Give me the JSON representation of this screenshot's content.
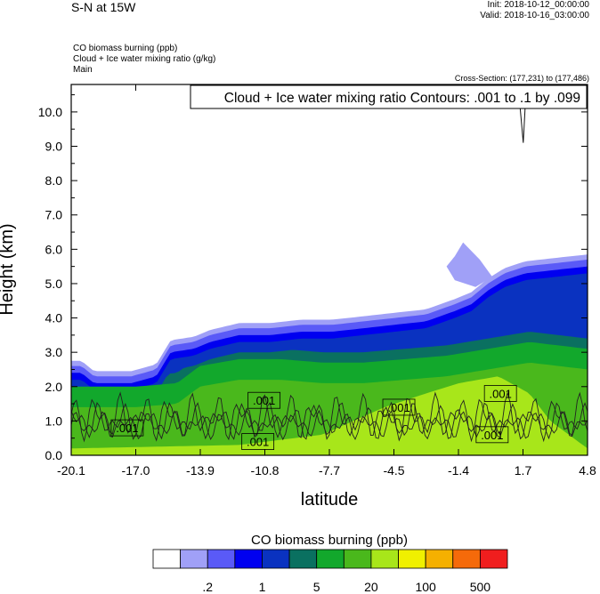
{
  "header": {
    "title": "S-N at 15W",
    "init": "Init: 2018-10-12_00:00:00",
    "valid": "Valid: 2018-10-16_03:00:00",
    "field_lines": [
      "CO biomass burning   (ppb)",
      "Cloud + Ice water mixing ratio   (g/kg)",
      "Main"
    ],
    "cross_section": "Cross-Section: (177,231) to (177,486)"
  },
  "chart_data": {
    "type": "heatmap",
    "xlabel": "latitude",
    "ylabel": "Height (km)",
    "xlim": [
      -20.1,
      4.8
    ],
    "ylim": [
      0.0,
      10.8
    ],
    "x_ticks": [
      "-20.1",
      "-17.0",
      "-13.9",
      "-10.8",
      "-7.7",
      "-4.5",
      "-1.4",
      "1.7",
      "4.8"
    ],
    "y_ticks": [
      "0.0",
      "1.0",
      "2.0",
      "3.0",
      "4.0",
      "5.0",
      "6.0",
      "7.0",
      "8.0",
      "9.0",
      "10.0"
    ],
    "contour_info": "Cloud + Ice water mixing ratio Contours: .001 to .1 by .099",
    "contour_labels": [
      {
        "text": ".001",
        "lat": -17.4,
        "h": 0.8
      },
      {
        "text": ".001",
        "lat": -10.8,
        "h": 1.6
      },
      {
        "text": ".001",
        "lat": -11.1,
        "h": 0.4
      },
      {
        "text": ".001",
        "lat": -4.3,
        "h": 1.4
      },
      {
        "text": ".001",
        "lat": 0.6,
        "h": 1.8
      },
      {
        "text": ".001",
        "lat": 0.2,
        "h": 0.6
      }
    ],
    "colorbar_title": "CO biomass burning  (ppb)",
    "colorbar_labels": [
      ".2",
      "1",
      "5",
      "20",
      "100",
      "500"
    ],
    "colorbar_colors": [
      "#ffffff",
      "#a0a0f7",
      "#5a5af7",
      "#0000f0",
      "#0a32c0",
      "#0a7060",
      "#12a82c",
      "#4ab81c",
      "#a8e61a",
      "#f0f000",
      "#f5b000",
      "#f56a0a",
      "#f01e1e"
    ],
    "fields": {
      "plume_top_km": [
        [
          -20.1,
          2.6
        ],
        [
          -19.6,
          2.6
        ],
        [
          -19.0,
          2.3
        ],
        [
          -17.2,
          2.3
        ],
        [
          -16.0,
          2.5
        ],
        [
          -15.3,
          3.2
        ],
        [
          -14.2,
          3.3
        ],
        [
          -13.4,
          3.5
        ],
        [
          -12.0,
          3.7
        ],
        [
          -10.5,
          3.7
        ],
        [
          -9.0,
          3.8
        ],
        [
          -7.5,
          3.8
        ],
        [
          -6.0,
          3.9
        ],
        [
          -4.5,
          4.0
        ],
        [
          -3.0,
          4.1
        ],
        [
          -1.6,
          4.4
        ],
        [
          -0.8,
          4.6
        ],
        [
          0.0,
          5.0
        ],
        [
          0.8,
          5.3
        ],
        [
          1.8,
          5.5
        ],
        [
          4.8,
          5.7
        ]
      ],
      "lobe_top_km": [
        [
          -1.6,
          5.8
        ],
        [
          -1.2,
          6.2
        ],
        [
          -0.4,
          5.7
        ],
        [
          0.2,
          5.2
        ],
        [
          -0.6,
          4.9
        ],
        [
          -1.6,
          5.1
        ],
        [
          -2.0,
          5.5
        ]
      ],
      "lower_green_top_km": [
        [
          -20.1,
          2.0
        ],
        [
          -17.0,
          2.0
        ],
        [
          -15.0,
          2.1
        ],
        [
          -13.9,
          2.6
        ],
        [
          -12.0,
          2.8
        ],
        [
          -10.0,
          2.8
        ],
        [
          -8.0,
          2.7
        ],
        [
          -6.0,
          2.7
        ],
        [
          -4.0,
          2.8
        ],
        [
          -2.0,
          2.9
        ],
        [
          0.0,
          3.1
        ],
        [
          2.0,
          3.3
        ],
        [
          4.8,
          3.1
        ]
      ],
      "lime_top_km": [
        [
          -20.1,
          0.2
        ],
        [
          -12.0,
          0.3
        ],
        [
          -8.0,
          0.6
        ],
        [
          -5.0,
          1.4
        ],
        [
          -3.0,
          1.8
        ],
        [
          -1.4,
          2.1
        ],
        [
          0.5,
          2.3
        ],
        [
          2.0,
          1.8
        ],
        [
          3.0,
          1.0
        ],
        [
          4.8,
          0.2
        ]
      ],
      "contour_band_km": [
        0.3,
        1.7
      ],
      "cloud_spike": {
        "lat": 1.7,
        "h_top": 10.8,
        "h_bottom": 9.1
      }
    }
  }
}
